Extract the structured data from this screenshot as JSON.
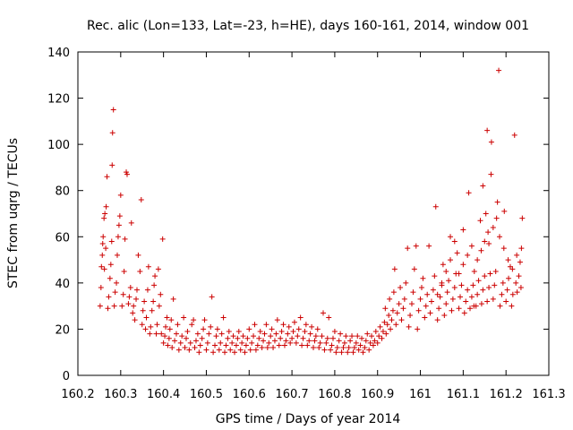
{
  "chart_data": {
    "type": "scatter",
    "title": "Rec. alic (Lon=133, Lat=-23, h=HE), days 160-161, 2014, window 001",
    "xlabel": "GPS time / Days of year 2014",
    "ylabel": "STEC from uqrg / TECUs",
    "xlim": [
      160.2,
      161.3
    ],
    "ylim": [
      0,
      140
    ],
    "xticks": [
      160.2,
      160.3,
      160.4,
      160.5,
      160.6,
      160.7,
      160.8,
      160.9,
      161,
      161.1,
      161.2,
      161.3
    ],
    "xtick_labels": [
      "160.2",
      "160.3",
      "160.4",
      "160.5",
      "160.6",
      "160.7",
      "160.8",
      "160.9",
      "161",
      "161.1",
      "161.2",
      "161.3"
    ],
    "yticks": [
      0,
      20,
      40,
      60,
      80,
      100,
      120,
      140
    ],
    "ytick_labels": [
      "0",
      "20",
      "40",
      "60",
      "80",
      "100",
      "120",
      "140"
    ],
    "marker": "+",
    "color": "#cc0000",
    "grid": false,
    "points": [
      [
        160.252,
        30
      ],
      [
        160.254,
        38
      ],
      [
        160.255,
        47
      ],
      [
        160.257,
        52
      ],
      [
        160.258,
        57
      ],
      [
        160.259,
        60
      ],
      [
        160.261,
        68
      ],
      [
        160.263,
        70
      ],
      [
        160.266,
        73
      ],
      [
        160.268,
        86
      ],
      [
        160.262,
        46
      ],
      [
        160.265,
        55
      ],
      [
        160.27,
        29
      ],
      [
        160.272,
        34
      ],
      [
        160.275,
        42
      ],
      [
        160.277,
        48
      ],
      [
        160.279,
        58
      ],
      [
        160.28,
        91
      ],
      [
        160.281,
        105
      ],
      [
        160.283,
        115
      ],
      [
        160.285,
        30
      ],
      [
        160.287,
        36
      ],
      [
        160.29,
        40
      ],
      [
        160.292,
        52
      ],
      [
        160.294,
        60
      ],
      [
        160.296,
        65
      ],
      [
        160.298,
        69
      ],
      [
        160.3,
        78
      ],
      [
        160.303,
        30
      ],
      [
        160.306,
        35
      ],
      [
        160.308,
        45
      ],
      [
        160.31,
        59
      ],
      [
        160.313,
        88
      ],
      [
        160.315,
        87
      ],
      [
        160.318,
        31
      ],
      [
        160.32,
        34
      ],
      [
        160.323,
        38
      ],
      [
        160.325,
        66
      ],
      [
        160.328,
        27
      ],
      [
        160.33,
        30
      ],
      [
        160.333,
        24
      ],
      [
        160.336,
        33
      ],
      [
        160.338,
        37
      ],
      [
        160.341,
        52
      ],
      [
        160.345,
        45
      ],
      [
        160.348,
        76
      ],
      [
        160.35,
        22
      ],
      [
        160.352,
        28
      ],
      [
        160.355,
        32
      ],
      [
        160.358,
        20
      ],
      [
        160.36,
        25
      ],
      [
        160.363,
        37
      ],
      [
        160.365,
        47
      ],
      [
        160.368,
        18
      ],
      [
        160.37,
        21
      ],
      [
        160.373,
        28
      ],
      [
        160.376,
        32
      ],
      [
        160.378,
        39
      ],
      [
        160.38,
        43
      ],
      [
        160.383,
        18
      ],
      [
        160.385,
        22
      ],
      [
        160.388,
        46
      ],
      [
        160.39,
        30
      ],
      [
        160.393,
        35
      ],
      [
        160.395,
        18
      ],
      [
        160.398,
        59
      ],
      [
        160.4,
        14
      ],
      [
        160.403,
        17
      ],
      [
        160.405,
        21
      ],
      [
        160.408,
        25
      ],
      [
        160.41,
        13
      ],
      [
        160.413,
        16
      ],
      [
        160.415,
        20
      ],
      [
        160.418,
        24
      ],
      [
        160.42,
        12
      ],
      [
        160.423,
        33
      ],
      [
        160.426,
        15
      ],
      [
        160.43,
        18
      ],
      [
        160.433,
        22
      ],
      [
        160.436,
        11
      ],
      [
        160.44,
        14
      ],
      [
        160.443,
        17
      ],
      [
        160.447,
        25
      ],
      [
        160.45,
        12
      ],
      [
        160.453,
        16
      ],
      [
        160.456,
        19
      ],
      [
        160.46,
        11
      ],
      [
        160.463,
        14
      ],
      [
        160.466,
        22
      ],
      [
        160.47,
        24
      ],
      [
        160.473,
        12
      ],
      [
        160.476,
        15
      ],
      [
        160.48,
        18
      ],
      [
        160.483,
        10
      ],
      [
        160.486,
        13
      ],
      [
        160.49,
        16
      ],
      [
        160.493,
        20
      ],
      [
        160.496,
        24
      ],
      [
        160.5,
        11
      ],
      [
        160.503,
        14
      ],
      [
        160.506,
        18
      ],
      [
        160.51,
        21
      ],
      [
        160.513,
        34
      ],
      [
        160.516,
        10
      ],
      [
        160.52,
        13
      ],
      [
        160.523,
        17
      ],
      [
        160.526,
        20
      ],
      [
        160.53,
        11
      ],
      [
        160.533,
        14
      ],
      [
        160.536,
        18
      ],
      [
        160.54,
        25
      ],
      [
        160.543,
        10
      ],
      [
        160.546,
        13
      ],
      [
        160.55,
        16
      ],
      [
        160.553,
        19
      ],
      [
        160.556,
        11
      ],
      [
        160.56,
        14
      ],
      [
        160.563,
        17
      ],
      [
        160.566,
        10
      ],
      [
        160.57,
        13
      ],
      [
        160.573,
        16
      ],
      [
        160.576,
        19
      ],
      [
        160.58,
        11
      ],
      [
        160.583,
        14
      ],
      [
        160.586,
        17
      ],
      [
        160.59,
        10
      ],
      [
        160.593,
        13
      ],
      [
        160.596,
        16
      ],
      [
        160.6,
        20
      ],
      [
        160.603,
        11
      ],
      [
        160.606,
        14
      ],
      [
        160.61,
        17
      ],
      [
        160.613,
        22
      ],
      [
        160.616,
        11
      ],
      [
        160.62,
        13
      ],
      [
        160.623,
        16
      ],
      [
        160.626,
        19
      ],
      [
        160.63,
        12
      ],
      [
        160.633,
        15
      ],
      [
        160.636,
        18
      ],
      [
        160.64,
        22
      ],
      [
        160.643,
        12
      ],
      [
        160.646,
        14
      ],
      [
        160.65,
        17
      ],
      [
        160.653,
        20
      ],
      [
        160.656,
        12
      ],
      [
        160.66,
        15
      ],
      [
        160.663,
        18
      ],
      [
        160.666,
        24
      ],
      [
        160.67,
        13
      ],
      [
        160.673,
        16
      ],
      [
        160.676,
        19
      ],
      [
        160.68,
        22
      ],
      [
        160.683,
        13
      ],
      [
        160.686,
        15
      ],
      [
        160.69,
        18
      ],
      [
        160.693,
        21
      ],
      [
        160.696,
        14
      ],
      [
        160.7,
        16
      ],
      [
        160.703,
        19
      ],
      [
        160.706,
        23
      ],
      [
        160.71,
        14
      ],
      [
        160.713,
        17
      ],
      [
        160.716,
        20
      ],
      [
        160.72,
        25
      ],
      [
        160.723,
        13
      ],
      [
        160.726,
        16
      ],
      [
        160.73,
        19
      ],
      [
        160.733,
        22
      ],
      [
        160.736,
        13
      ],
      [
        160.74,
        15
      ],
      [
        160.743,
        18
      ],
      [
        160.746,
        21
      ],
      [
        160.75,
        12
      ],
      [
        160.753,
        15
      ],
      [
        160.756,
        17
      ],
      [
        160.76,
        20
      ],
      [
        160.763,
        12
      ],
      [
        160.766,
        14
      ],
      [
        160.77,
        17
      ],
      [
        160.773,
        27
      ],
      [
        160.776,
        11
      ],
      [
        160.78,
        14
      ],
      [
        160.783,
        16
      ],
      [
        160.786,
        25
      ],
      [
        160.79,
        11
      ],
      [
        160.793,
        13
      ],
      [
        160.796,
        16
      ],
      [
        160.8,
        19
      ],
      [
        160.803,
        10
      ],
      [
        160.806,
        12
      ],
      [
        160.81,
        15
      ],
      [
        160.813,
        18
      ],
      [
        160.816,
        10
      ],
      [
        160.82,
        12
      ],
      [
        160.823,
        14
      ],
      [
        160.826,
        17
      ],
      [
        160.83,
        10
      ],
      [
        160.833,
        12
      ],
      [
        160.836,
        15
      ],
      [
        160.84,
        17
      ],
      [
        160.843,
        10
      ],
      [
        160.846,
        12
      ],
      [
        160.85,
        14
      ],
      [
        160.853,
        17
      ],
      [
        160.856,
        11
      ],
      [
        160.86,
        13
      ],
      [
        160.863,
        16
      ],
      [
        160.866,
        10
      ],
      [
        160.87,
        12
      ],
      [
        160.873,
        15
      ],
      [
        160.876,
        18
      ],
      [
        160.88,
        11
      ],
      [
        160.883,
        14
      ],
      [
        160.886,
        17
      ],
      [
        160.89,
        13
      ],
      [
        160.893,
        15
      ],
      [
        160.896,
        19
      ],
      [
        160.9,
        14
      ],
      [
        160.903,
        17
      ],
      [
        160.906,
        21
      ],
      [
        160.91,
        16
      ],
      [
        160.913,
        19
      ],
      [
        160.916,
        23
      ],
      [
        160.918,
        29
      ],
      [
        160.92,
        18
      ],
      [
        160.923,
        22
      ],
      [
        160.926,
        26
      ],
      [
        160.928,
        33
      ],
      [
        160.93,
        20
      ],
      [
        160.933,
        24
      ],
      [
        160.936,
        28
      ],
      [
        160.938,
        36
      ],
      [
        160.94,
        46
      ],
      [
        160.943,
        22
      ],
      [
        160.946,
        27
      ],
      [
        160.95,
        31
      ],
      [
        160.953,
        38
      ],
      [
        160.956,
        24
      ],
      [
        160.96,
        29
      ],
      [
        160.963,
        33
      ],
      [
        160.966,
        40
      ],
      [
        160.97,
        55
      ],
      [
        160.973,
        21
      ],
      [
        160.976,
        26
      ],
      [
        160.98,
        31
      ],
      [
        160.983,
        36
      ],
      [
        160.986,
        46
      ],
      [
        160.99,
        56
      ],
      [
        160.993,
        20
      ],
      [
        160.996,
        28
      ],
      [
        161.0,
        33
      ],
      [
        161.003,
        38
      ],
      [
        161.006,
        42
      ],
      [
        161.01,
        25
      ],
      [
        161.013,
        30
      ],
      [
        161.016,
        35
      ],
      [
        161.02,
        56
      ],
      [
        161.023,
        27
      ],
      [
        161.026,
        32
      ],
      [
        161.03,
        37
      ],
      [
        161.033,
        43
      ],
      [
        161.036,
        73
      ],
      [
        161.04,
        24
      ],
      [
        161.043,
        29
      ],
      [
        161.046,
        34
      ],
      [
        161.05,
        39
      ],
      [
        161.053,
        48
      ],
      [
        161.056,
        26
      ],
      [
        161.06,
        31
      ],
      [
        161.063,
        36
      ],
      [
        161.066,
        41
      ],
      [
        161.07,
        60
      ],
      [
        161.073,
        28
      ],
      [
        161.076,
        33
      ],
      [
        161.08,
        38
      ],
      [
        161.083,
        44
      ],
      [
        161.086,
        53
      ],
      [
        161.09,
        29
      ],
      [
        161.093,
        34
      ],
      [
        161.096,
        39
      ],
      [
        161.1,
        63
      ],
      [
        161.103,
        27
      ],
      [
        161.106,
        32
      ],
      [
        161.11,
        37
      ],
      [
        161.113,
        79
      ],
      [
        161.116,
        29
      ],
      [
        161.12,
        34
      ],
      [
        161.123,
        39
      ],
      [
        161.126,
        45
      ],
      [
        161.13,
        30
      ],
      [
        161.133,
        35
      ],
      [
        161.136,
        41
      ],
      [
        161.14,
        67
      ],
      [
        161.143,
        31
      ],
      [
        161.146,
        37
      ],
      [
        161.15,
        43
      ],
      [
        161.153,
        70
      ],
      [
        161.156,
        32
      ],
      [
        161.16,
        38
      ],
      [
        161.163,
        44
      ],
      [
        161.165,
        87
      ],
      [
        161.166,
        101
      ],
      [
        161.17,
        33
      ],
      [
        161.173,
        39
      ],
      [
        161.176,
        45
      ],
      [
        161.18,
        75
      ],
      [
        161.183,
        132
      ],
      [
        161.186,
        30
      ],
      [
        161.19,
        35
      ],
      [
        161.193,
        40
      ],
      [
        161.196,
        71
      ],
      [
        161.2,
        32
      ],
      [
        161.203,
        37
      ],
      [
        161.206,
        42
      ],
      [
        161.21,
        47
      ],
      [
        161.213,
        30
      ],
      [
        161.216,
        35
      ],
      [
        161.22,
        104
      ],
      [
        161.223,
        40
      ],
      [
        161.226,
        36
      ],
      [
        161.23,
        43
      ],
      [
        161.233,
        49
      ],
      [
        161.236,
        55
      ],
      [
        161.238,
        68
      ],
      [
        161.156,
        106
      ],
      [
        161.158,
        62
      ],
      [
        161.16,
        57
      ],
      [
        161.146,
        82
      ],
      [
        161.17,
        64
      ],
      [
        161.1,
        48
      ],
      [
        161.11,
        52
      ],
      [
        161.12,
        56
      ],
      [
        161.125,
        30
      ],
      [
        161.09,
        44
      ],
      [
        161.08,
        58
      ],
      [
        161.07,
        50
      ],
      [
        161.06,
        45
      ],
      [
        161.05,
        40
      ],
      [
        161.04,
        35
      ],
      [
        161.133,
        50
      ],
      [
        161.142,
        54
      ],
      [
        161.15,
        58
      ],
      [
        161.178,
        68
      ],
      [
        161.185,
        60
      ],
      [
        161.195,
        55
      ],
      [
        161.205,
        50
      ],
      [
        161.215,
        46
      ],
      [
        161.225,
        52
      ],
      [
        161.235,
        38
      ]
    ]
  }
}
